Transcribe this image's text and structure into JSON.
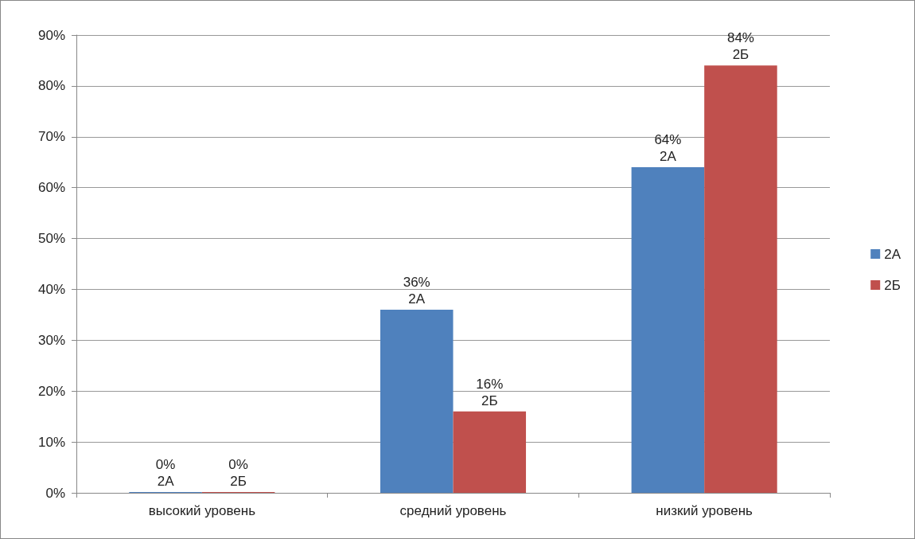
{
  "chart_data": {
    "type": "bar",
    "categories": [
      "высокий уровень",
      "средний уровень",
      "низкий уровень"
    ],
    "series": [
      {
        "name": "2А",
        "color": "#4f81bd",
        "values": [
          0,
          36,
          64
        ],
        "value_labels": [
          "0%",
          "36%",
          "64%"
        ]
      },
      {
        "name": "2Б",
        "color": "#c0504d",
        "values": [
          0,
          16,
          84
        ],
        "value_labels": [
          "0%",
          "16%",
          "84%"
        ]
      }
    ],
    "ylim": [
      0,
      90
    ],
    "yticks": [
      {
        "value": 0,
        "label": "0%"
      },
      {
        "value": 10,
        "label": "10%"
      },
      {
        "value": 20,
        "label": "20%"
      },
      {
        "value": 30,
        "label": "30%"
      },
      {
        "value": 40,
        "label": "40%"
      },
      {
        "value": 50,
        "label": "50%"
      },
      {
        "value": 60,
        "label": "60%"
      },
      {
        "value": 70,
        "label": "70%"
      },
      {
        "value": 80,
        "label": "80%"
      },
      {
        "value": 90,
        "label": "90%"
      }
    ],
    "grid": "y",
    "legend": "right"
  }
}
